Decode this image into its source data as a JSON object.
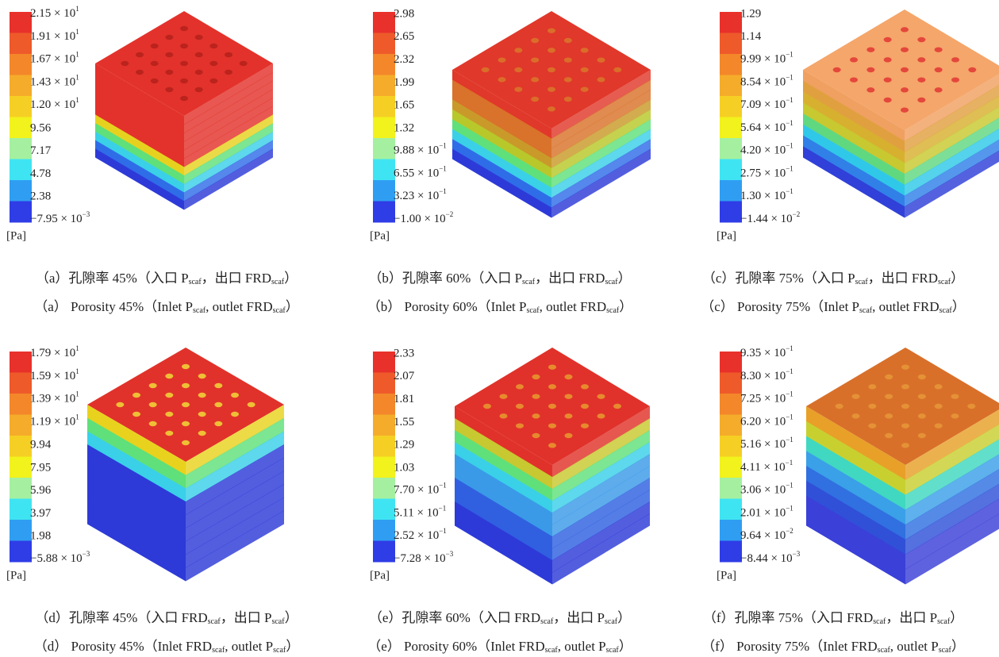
{
  "legend_colors": [
    "#e8312b",
    "#ee5a2a",
    "#f3872a",
    "#f5ac2a",
    "#f6cf24",
    "#f2f21c",
    "#a4f0a0",
    "#3fe4f2",
    "#2f9ef2",
    "#2f3de6"
  ],
  "unit": "[Pa]",
  "panels": [
    {
      "labels": [
        [
          "2.15 × 10",
          "1"
        ],
        [
          "1.91 × 10",
          "1"
        ],
        [
          "1.67 × 10",
          "1"
        ],
        [
          "1.43 × 10",
          "1"
        ],
        [
          "1.20 × 10",
          "1"
        ],
        "9.56",
        "7.17",
        "4.78",
        "2.38",
        [
          "−7.95 × 10",
          "−3"
        ]
      ],
      "caption_cn": [
        "（a）孔隙率 45%（入口 P",
        "scaf",
        "，出口 FRD",
        "scaf",
        "）"
      ],
      "caption_en": [
        "（a） Porosity 45%（Inlet P",
        "scaf",
        ", outlet FRD",
        "scaf",
        "）"
      ]
    },
    {
      "labels": [
        "2.98",
        "2.65",
        "2.32",
        "1.99",
        "1.65",
        "1.32",
        [
          "9.88 × 10",
          "−1"
        ],
        [
          "6.55 × 10",
          "−1"
        ],
        [
          "3.23 × 10",
          "−1"
        ],
        [
          "−1.00 × 10",
          "−2"
        ]
      ],
      "caption_cn": [
        "（b）孔隙率 60%（入口 P",
        "scaf",
        "，出口 FRD",
        "scaf",
        "）"
      ],
      "caption_en": [
        "（b） Porosity 60%（Inlet P",
        "scaf",
        ", outlet FRD",
        "scaf",
        "）"
      ]
    },
    {
      "labels": [
        "1.29",
        "1.14",
        [
          "9.99 × 10",
          "−1"
        ],
        [
          "8.54 × 10",
          "−1"
        ],
        [
          "7.09 × 10",
          "−1"
        ],
        [
          "5.64 × 10",
          "−1"
        ],
        [
          "4.20 × 10",
          "−1"
        ],
        [
          "2.75 × 10",
          "−1"
        ],
        [
          "1.30 × 10",
          "−1"
        ],
        [
          "−1.44 × 10",
          "−2"
        ]
      ],
      "caption_cn": [
        "（c）孔隙率 75%（入口 P",
        "scaf",
        "，出口 FRD",
        "scaf",
        "）"
      ],
      "caption_en": [
        "（c） Porosity 75%（Inlet P",
        "scaf",
        ", outlet FRD",
        "scaf",
        "）"
      ]
    },
    {
      "labels": [
        [
          "1.79 × 10",
          "1"
        ],
        [
          "1.59 × 10",
          "1"
        ],
        [
          "1.39 × 10",
          "1"
        ],
        [
          "1.19 × 10",
          "1"
        ],
        "9.94",
        "7.95",
        "5.96",
        "3.97",
        "1.98",
        [
          "−5.88 × 10",
          "−3"
        ]
      ],
      "caption_cn": [
        "（d）孔隙率 45%（入口 FRD",
        "scaf",
        "，出口 P",
        "scaf",
        "）"
      ],
      "caption_en": [
        "（d） Porosity 45%（Inlet FRD",
        "scaf",
        ", outlet P",
        "scaf",
        "）"
      ]
    },
    {
      "labels": [
        "2.33",
        "2.07",
        "1.81",
        "1.55",
        "1.29",
        "1.03",
        [
          "7.70 × 10",
          "−1"
        ],
        [
          "5.11 × 10",
          "−1"
        ],
        [
          "2.52 × 10",
          "−1"
        ],
        [
          "−7.28 × 10",
          "−3"
        ]
      ],
      "caption_cn": [
        "（e）孔隙率 60%（入口 FRD",
        "scaf",
        "，出口 P",
        "scaf",
        "）"
      ],
      "caption_en": [
        "（e） Porosity 60%（Inlet FRD",
        "scaf",
        ", outlet P",
        "scaf",
        "）"
      ]
    },
    {
      "labels": [
        [
          "9.35 × 10",
          "−1"
        ],
        [
          "8.30 × 10",
          "−1"
        ],
        [
          "7.25 × 10",
          "−1"
        ],
        [
          "6.20 × 10",
          "−1"
        ],
        [
          "5.16 × 10",
          "−1"
        ],
        [
          "4.11 × 10",
          "−1"
        ],
        [
          "3.06 × 10",
          "−1"
        ],
        [
          "2.01 × 10",
          "−1"
        ],
        [
          "9.64 × 10",
          "−2"
        ],
        [
          "−8.44 × 10",
          "−3"
        ]
      ],
      "caption_cn": [
        "（f）孔隙率 75%（入口 FRD",
        "scaf",
        "，出口 P",
        "scaf",
        "）"
      ],
      "caption_en": [
        "（f） Porosity 75%（Inlet FRD",
        "scaf",
        ", outlet P",
        "scaf",
        "）"
      ]
    }
  ]
}
